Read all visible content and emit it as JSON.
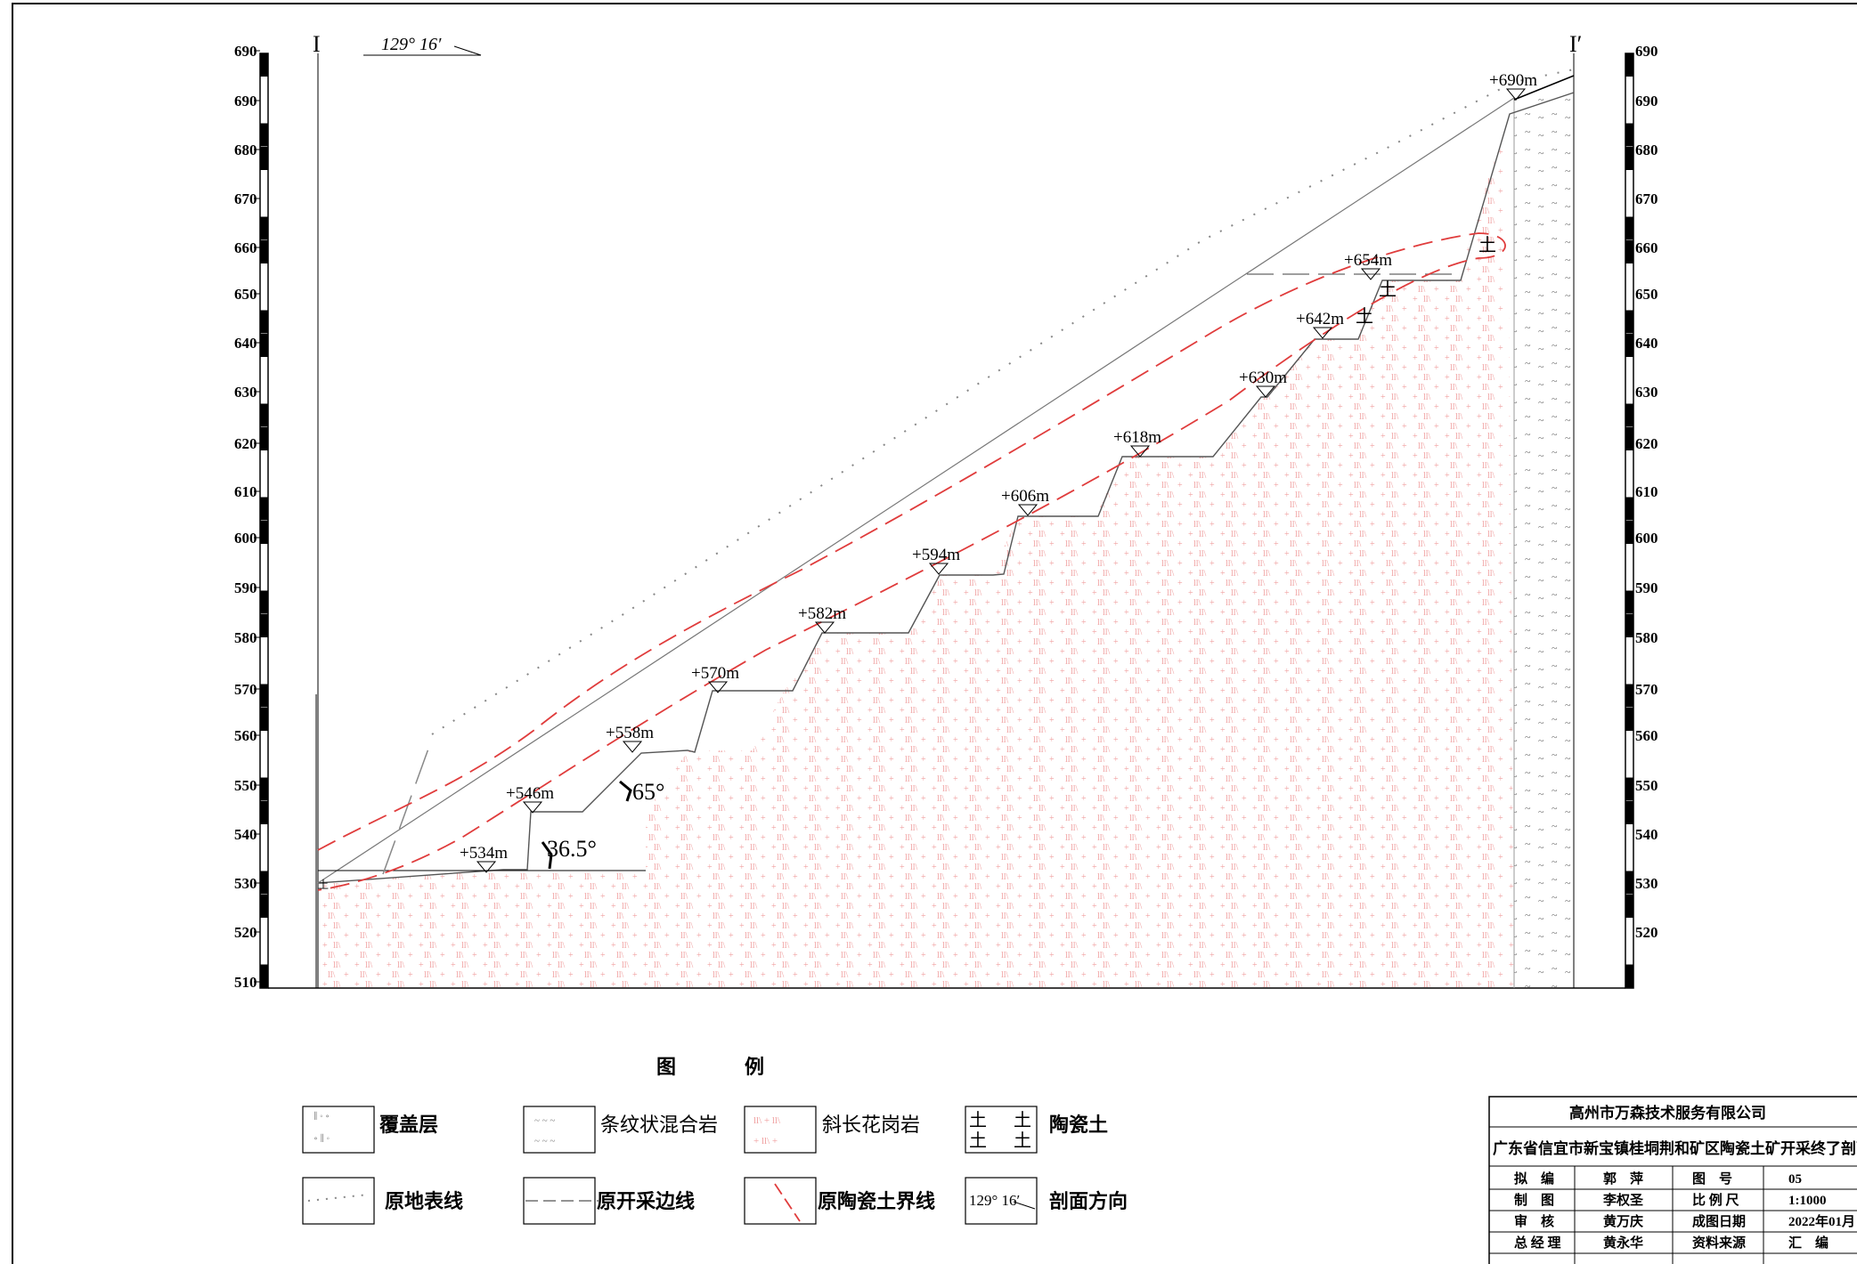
{
  "section": {
    "left_marker": "I",
    "right_marker": "I′",
    "direction_label": "129° 16′"
  },
  "scale_left": [
    "690",
    "690",
    "680",
    "670",
    "660",
    "650",
    "640",
    "630",
    "620",
    "610",
    "600",
    "590",
    "580",
    "570",
    "560",
    "550",
    "540",
    "530",
    "520",
    "510"
  ],
  "scale_right": [
    "690",
    "690",
    "680",
    "670",
    "660",
    "650",
    "640",
    "630",
    "620",
    "610",
    "600",
    "590",
    "580",
    "570",
    "560",
    "550",
    "540",
    "530",
    "520"
  ],
  "benches": [
    "+534m",
    "+546m",
    "+558m",
    "+570m",
    "+582m",
    "+594m",
    "+606m",
    "+618m",
    "+630m",
    "+642m",
    "+654m",
    "+690m"
  ],
  "angles": {
    "bench_face": "65°",
    "overall_slope": "36.5°"
  },
  "clay_symbol": "土",
  "legend": {
    "title_left": "图",
    "title_right": "例",
    "items": [
      {
        "label": "覆盖层",
        "icon": "overburden-icon"
      },
      {
        "label": "条纹状混合岩",
        "icon": "migmatite-icon"
      },
      {
        "label": "斜长花岗岩",
        "icon": "plagiogranite-icon"
      },
      {
        "label": "陶瓷土",
        "icon": "ceramic-clay-icon"
      },
      {
        "label": "原地表线",
        "icon": "original-surface-line-icon"
      },
      {
        "label": "原开采边线",
        "icon": "original-mining-boundary-icon"
      },
      {
        "label": "原陶瓷土界线",
        "icon": "original-clay-boundary-icon"
      },
      {
        "label": "剖面方向",
        "icon": "section-direction-icon"
      }
    ],
    "direction_sample": "129° 16′"
  },
  "title_block": {
    "company": "高州市万森技术服务有限公司",
    "project": "广东省信宜市新宝镇桂垌荆和矿区陶瓷土矿开采终了剖面",
    "rows": [
      [
        "拟　编",
        "郭　萍",
        "图　号",
        "05"
      ],
      [
        "制　图",
        "李权圣",
        "比 例 尺",
        "1:1000"
      ],
      [
        "审　核",
        "黄万庆",
        "成图日期",
        "2022年01月"
      ],
      [
        "总 经 理",
        "黄永华",
        "资料来源",
        "汇　编"
      ]
    ]
  },
  "colors": {
    "line": "#000000",
    "boundary": "#e03c3c",
    "hatch": "#f0a0a0",
    "gray": "#9a9a9a"
  }
}
